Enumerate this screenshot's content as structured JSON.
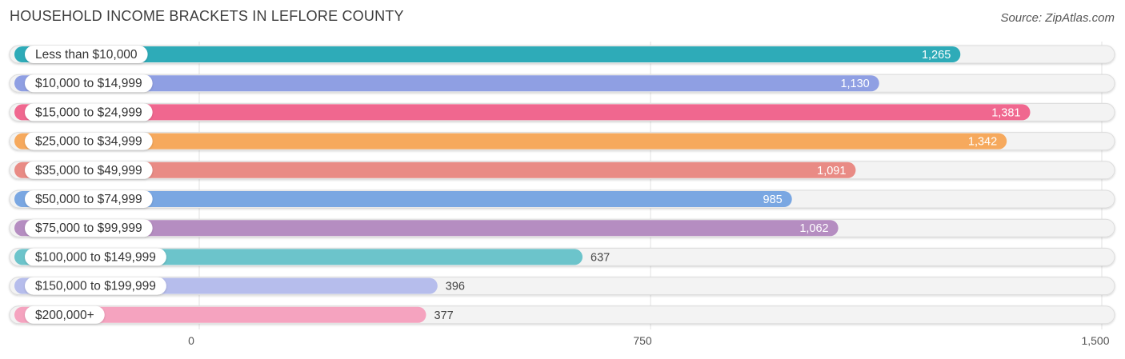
{
  "title": "HOUSEHOLD INCOME BRACKETS IN LEFLORE COUNTY",
  "source": "Source: ZipAtlas.com",
  "chart_data": {
    "type": "bar",
    "orientation": "horizontal",
    "categories": [
      "Less than $10,000",
      "$10,000 to $14,999",
      "$15,000 to $24,999",
      "$25,000 to $34,999",
      "$35,000 to $49,999",
      "$50,000 to $74,999",
      "$75,000 to $99,999",
      "$100,000 to $149,999",
      "$150,000 to $199,999",
      "$200,000+"
    ],
    "values": [
      1265,
      1130,
      1381,
      1342,
      1091,
      985,
      1062,
      637,
      396,
      377
    ],
    "value_labels": [
      "1,265",
      "1,130",
      "1,381",
      "1,342",
      "1,091",
      "985",
      "1,062",
      "637",
      "396",
      "377"
    ],
    "colors": [
      "#2eabb8",
      "#8f9fe3",
      "#f0678f",
      "#f6a95d",
      "#e98b85",
      "#7aa7e2",
      "#b58dc1",
      "#6cc4cb",
      "#b6bdec",
      "#f5a3bf"
    ],
    "xlim": [
      0,
      1500
    ],
    "xticks": [
      0,
      750,
      1500
    ],
    "xtick_labels": [
      "0",
      "750",
      "1,500"
    ],
    "grid": true
  }
}
